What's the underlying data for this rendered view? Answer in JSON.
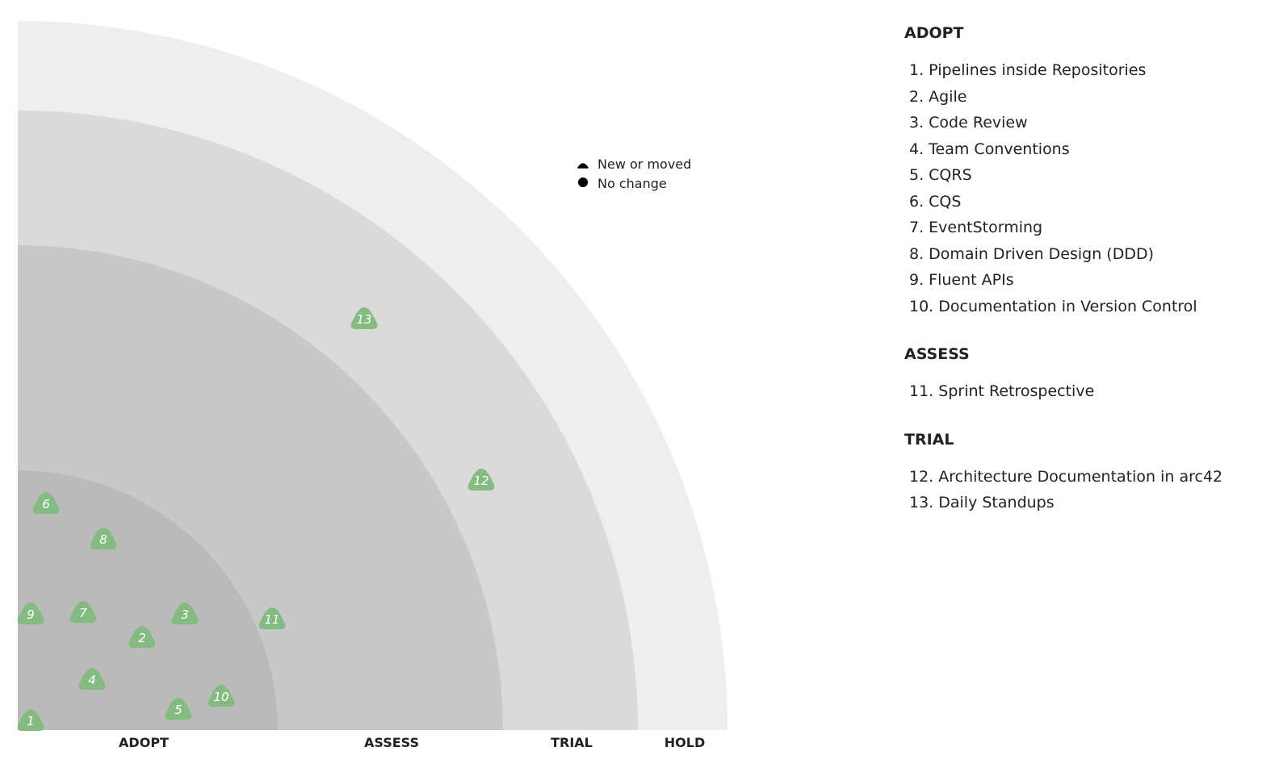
{
  "radar": {
    "rings": [
      {
        "name": "ADOPT",
        "color": "#bababa"
      },
      {
        "name": "ASSESS",
        "color": "#c8c8c8"
      },
      {
        "name": "TRIAL",
        "color": "#dadada"
      },
      {
        "name": "HOLD",
        "color": "#eeeeee"
      }
    ],
    "blip_color": "#84bb81",
    "legend": {
      "new_or_moved": "New or moved",
      "no_change": "No change"
    },
    "blips": [
      {
        "id": "1",
        "ring": "ADOPT",
        "shape": "triangle"
      },
      {
        "id": "2",
        "ring": "ADOPT",
        "shape": "triangle"
      },
      {
        "id": "3",
        "ring": "ADOPT",
        "shape": "triangle"
      },
      {
        "id": "4",
        "ring": "ADOPT",
        "shape": "triangle"
      },
      {
        "id": "5",
        "ring": "ADOPT",
        "shape": "triangle"
      },
      {
        "id": "6",
        "ring": "ADOPT",
        "shape": "triangle"
      },
      {
        "id": "7",
        "ring": "ADOPT",
        "shape": "triangle"
      },
      {
        "id": "8",
        "ring": "ADOPT",
        "shape": "triangle"
      },
      {
        "id": "9",
        "ring": "ADOPT",
        "shape": "triangle"
      },
      {
        "id": "10",
        "ring": "ADOPT",
        "shape": "triangle"
      },
      {
        "id": "11",
        "ring": "ASSESS",
        "shape": "triangle"
      },
      {
        "id": "12",
        "ring": "TRIAL",
        "shape": "triangle"
      },
      {
        "id": "13",
        "ring": "TRIAL",
        "shape": "triangle"
      }
    ]
  },
  "listing": [
    {
      "title": "ADOPT",
      "items": [
        "1. Pipelines inside Repositories",
        "2. Agile",
        "3. Code Review",
        "4. Team Conventions",
        "5. CQRS",
        "6. CQS",
        "7. EventStorming",
        "8. Domain Driven Design (DDD)",
        "9. Fluent APIs",
        "10. Documentation in Version Control"
      ]
    },
    {
      "title": "ASSESS",
      "items": [
        "11. Sprint Retrospective"
      ]
    },
    {
      "title": "TRIAL",
      "items": [
        "12. Architecture Documentation in arc42",
        "13. Daily Standups"
      ]
    }
  ]
}
